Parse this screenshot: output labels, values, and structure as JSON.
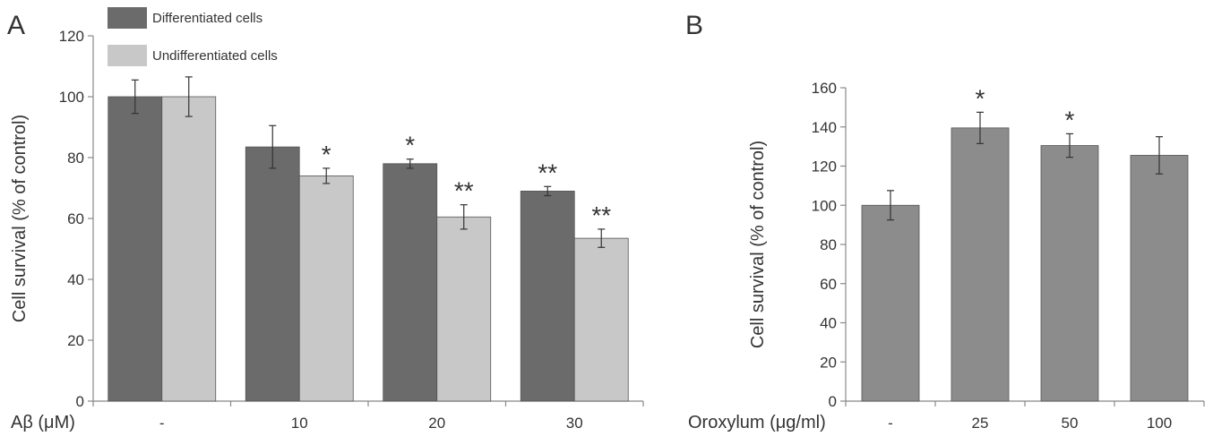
{
  "panels": [
    {
      "label": "A",
      "chart_data": {
        "type": "bar",
        "title": "",
        "xlabel": "Aβ (μM)",
        "ylabel": "Cell survival (% of control)",
        "ylim": [
          0,
          120
        ],
        "yticks": [
          0,
          20,
          40,
          60,
          80,
          100,
          120
        ],
        "categories": [
          "-",
          "10",
          "20",
          "30"
        ],
        "grid": false,
        "legend": "top-left",
        "series": [
          {
            "name": "Differentiated cells",
            "color": "#6b6b6b",
            "values": [
              100,
              83.5,
              78,
              69
            ],
            "errors": [
              5.5,
              7,
              1.5,
              1.5
            ],
            "significance": [
              "",
              "",
              "*",
              "**"
            ]
          },
          {
            "name": "Undifferentiated cells",
            "color": "#c8c8c8",
            "values": [
              100,
              74,
              60.5,
              53.5
            ],
            "errors": [
              6.5,
              2.5,
              4,
              3
            ],
            "significance": [
              "",
              "*",
              "**",
              "**"
            ]
          }
        ]
      }
    },
    {
      "label": "B",
      "chart_data": {
        "type": "bar",
        "title": "",
        "xlabel": "Oroxylum (μg/ml)",
        "ylabel": "Cell survival (% of control)",
        "ylim": [
          0,
          160
        ],
        "yticks": [
          0,
          20,
          40,
          60,
          80,
          100,
          120,
          140,
          160
        ],
        "categories": [
          "-",
          "25",
          "50",
          "100"
        ],
        "grid": false,
        "legend": "none",
        "series": [
          {
            "name": "",
            "color": "#8c8c8c",
            "values": [
              100,
              139.5,
              130.5,
              125.5
            ],
            "errors": [
              7.5,
              8,
              6,
              9.5
            ],
            "significance": [
              "",
              "*",
              "*",
              ""
            ]
          }
        ]
      }
    }
  ]
}
